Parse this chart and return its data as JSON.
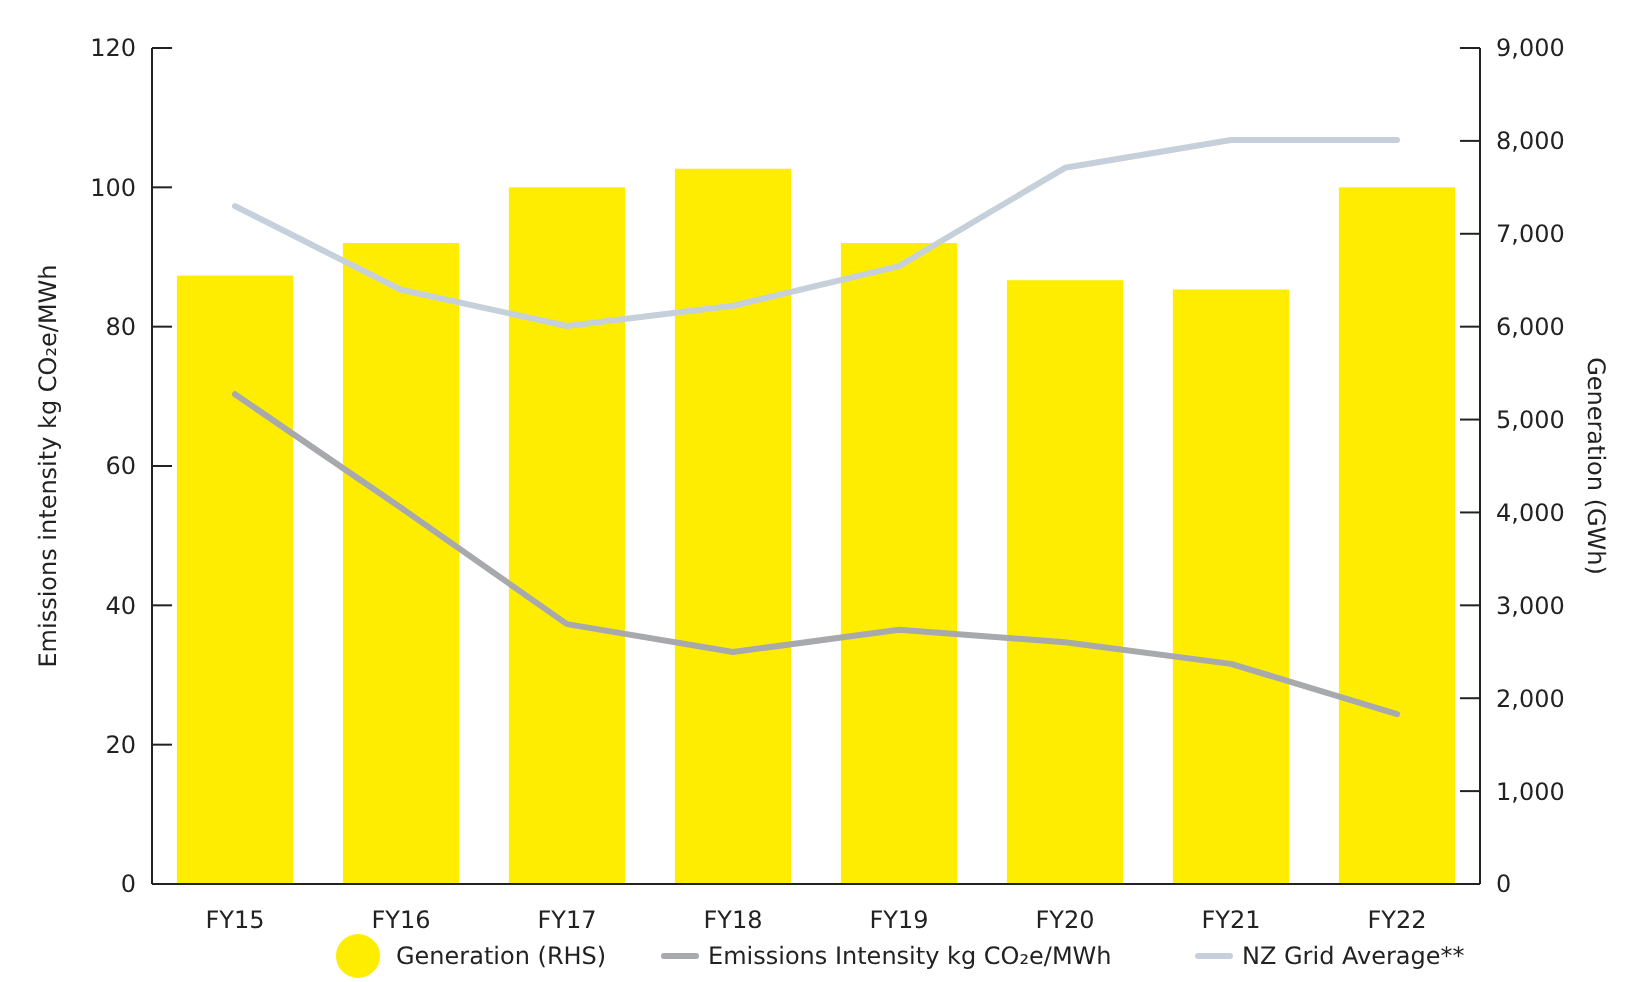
{
  "chart_data": {
    "type": "bar",
    "categories": [
      "FY15",
      "FY16",
      "FY17",
      "FY18",
      "FY19",
      "FY20",
      "FY21",
      "FY22"
    ],
    "ylabel": "Emissions intensity kg CO₂e/MWh",
    "y2label": "Generation (GWh)",
    "ylim": [
      0,
      120
    ],
    "yticks": [
      0,
      20,
      40,
      60,
      80,
      100,
      120
    ],
    "y2lim": [
      0,
      9000
    ],
    "y2ticks": [
      {
        "value": 0,
        "label": "0"
      },
      {
        "value": 1000,
        "label": "1,000"
      },
      {
        "value": 2000,
        "label": "2,000"
      },
      {
        "value": 3000,
        "label": "3,000"
      },
      {
        "value": 4000,
        "label": "4,000"
      },
      {
        "value": 5000,
        "label": "5,000"
      },
      {
        "value": 6000,
        "label": "6,000"
      },
      {
        "value": 7000,
        "label": "7,000"
      },
      {
        "value": 8000,
        "label": "8,000"
      },
      {
        "value": 9000,
        "label": "9,000"
      }
    ],
    "legend": "bottom",
    "grid": false,
    "series": [
      {
        "name": "Generation (RHS)",
        "axis": "y2",
        "color": "#ffed00",
        "values": [
          6550,
          6900,
          7500,
          7700,
          6900,
          6500,
          6400,
          7500
        ]
      },
      {
        "name": "Emissions Intensity kg CO₂e/MWh",
        "type": "line",
        "color": "#a7a9ac",
        "values": [
          70.3,
          54,
          37.3,
          33.3,
          36.5,
          34.7,
          31.6,
          24.4
        ]
      },
      {
        "name": "NZ Grid Average**",
        "type": "line",
        "color": "#c5d0da",
        "values": [
          97.3,
          85.3,
          80.1,
          83,
          88.7,
          102.8,
          106.8,
          106.8
        ]
      }
    ]
  }
}
